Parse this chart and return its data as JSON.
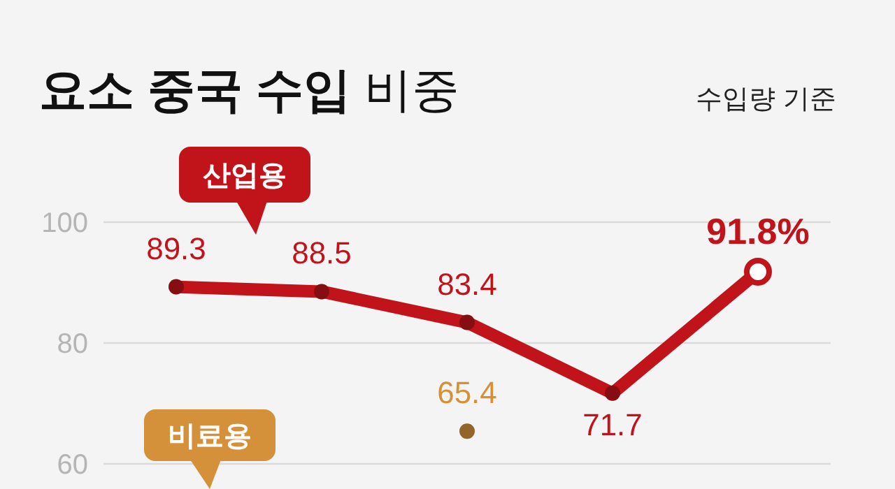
{
  "chart_data": {
    "type": "line",
    "title": "**요소 중국 수입** 비중",
    "subtitle": "수입량 기준",
    "categories": [
      null,
      null,
      null,
      null,
      null
    ],
    "ylim": [
      60,
      100
    ],
    "yticks": [
      60,
      80,
      100
    ],
    "grid": "y",
    "tick_labels": "y",
    "marker": "circle",
    "line_style": "solid",
    "series": [
      {
        "name": "산업용",
        "color": "#c0141a",
        "values": [
          89.3,
          88.5,
          83.4,
          71.7,
          91.8
        ],
        "value_labels": [
          "89.3",
          "88.5",
          "83.4",
          "71.7",
          "91.8%"
        ]
      },
      {
        "name": "비료용",
        "color": "#d4913a",
        "values": [
          null,
          null,
          65.4,
          null,
          null
        ],
        "value_labels": [
          null,
          null,
          "65.4",
          null,
          null
        ]
      }
    ]
  }
}
